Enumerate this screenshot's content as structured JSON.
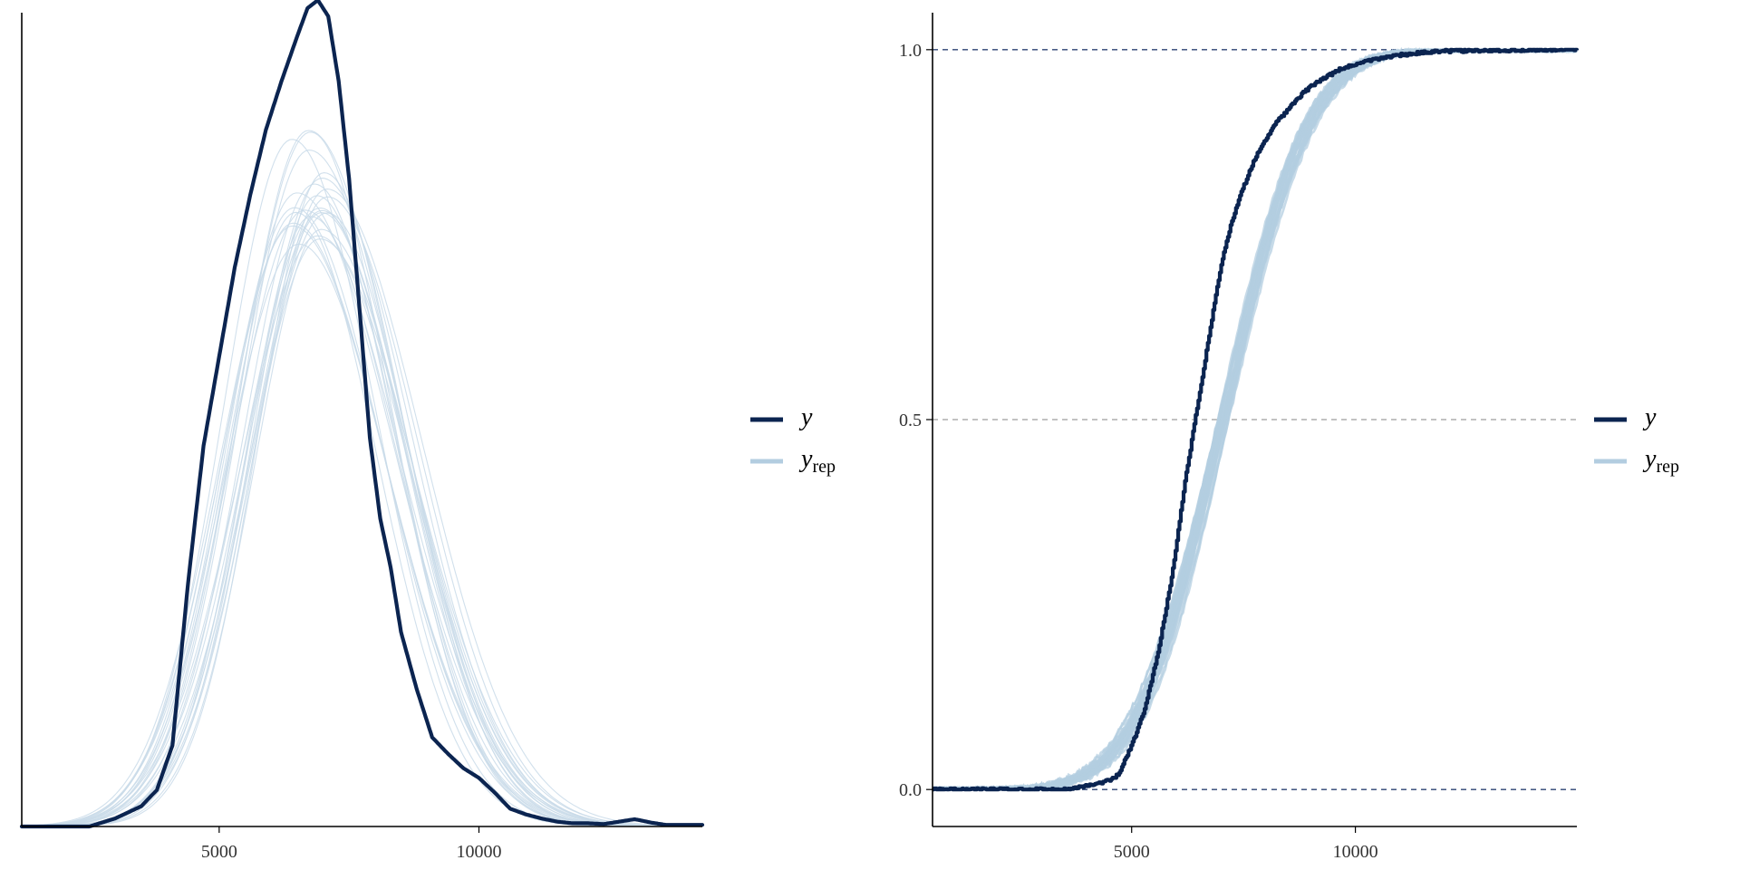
{
  "colors": {
    "y": "#0b2450",
    "yrep": "#b3cde0",
    "yrep_thin": "#c9dbe9",
    "grid_dark": "#2d4373",
    "grid_mid": "#9e9e9e"
  },
  "chart_data": [
    {
      "type": "line",
      "kind": "density-overlay",
      "title": "",
      "xlabel": "",
      "ylabel": "",
      "xlim": [
        1200,
        14300
      ],
      "ylim": [
        0,
        1.0
      ],
      "x_ticks": [
        5000,
        10000
      ],
      "x_tick_labels": [
        "5000",
        "10000"
      ],
      "y_ticks_shown": false,
      "legend": {
        "placement": "right",
        "entries": [
          {
            "label": "y",
            "sub": ""
          },
          {
            "label": "y",
            "sub": "rep"
          }
        ]
      },
      "series": [
        {
          "name": "y",
          "x": [
            1200,
            2500,
            3000,
            3500,
            3800,
            4100,
            4400,
            4700,
            5000,
            5300,
            5600,
            5900,
            6200,
            6500,
            6700,
            6900,
            7100,
            7300,
            7500,
            7700,
            7900,
            8100,
            8300,
            8500,
            8800,
            9100,
            9400,
            9700,
            10000,
            10300,
            10600,
            10900,
            11200,
            11500,
            11800,
            12100,
            12400,
            12700,
            13000,
            13300,
            13600,
            14000,
            14300
          ],
          "y": [
            0.0,
            0.0,
            0.01,
            0.025,
            0.045,
            0.1,
            0.3,
            0.47,
            0.58,
            0.69,
            0.78,
            0.86,
            0.92,
            0.975,
            1.01,
            1.02,
            1.0,
            0.92,
            0.8,
            0.64,
            0.48,
            0.38,
            0.32,
            0.24,
            0.17,
            0.11,
            0.09,
            0.072,
            0.06,
            0.042,
            0.022,
            0.015,
            0.01,
            0.006,
            0.004,
            0.004,
            0.003,
            0.006,
            0.009,
            0.005,
            0.002,
            0.002,
            0.002
          ]
        }
      ],
      "replicate_draws": 25,
      "replicate_mode": {
        "x": 6900,
        "density_range": [
          0.71,
          0.86
        ]
      }
    },
    {
      "type": "line",
      "kind": "ecdf-overlay",
      "title": "",
      "xlabel": "",
      "ylabel": "",
      "xlim": [
        550,
        14950
      ],
      "ylim": [
        -0.05,
        1.05
      ],
      "x_ticks": [
        5000,
        10000
      ],
      "x_tick_labels": [
        "5000",
        "10000"
      ],
      "y_ticks": [
        0.0,
        0.5,
        1.0
      ],
      "y_tick_labels": [
        "0.0",
        "0.5",
        "1.0"
      ],
      "reference_lines": [
        0.0,
        0.5,
        1.0
      ],
      "legend": {
        "placement": "right",
        "entries": [
          {
            "label": "y",
            "sub": ""
          },
          {
            "label": "y",
            "sub": "rep"
          }
        ]
      },
      "series": [
        {
          "name": "y",
          "x": [
            550,
            2000,
            3500,
            4000,
            4500,
            4700,
            5000,
            5300,
            5600,
            5900,
            6200,
            6500,
            6800,
            7000,
            7200,
            7400,
            7600,
            7800,
            8000,
            8200,
            8500,
            8800,
            9100,
            9400,
            9700,
            10000,
            10500,
            11000,
            11500,
            12000,
            13000,
            14000,
            14950
          ],
          "y": [
            0.0,
            0.0,
            0.0,
            0.005,
            0.012,
            0.02,
            0.06,
            0.11,
            0.19,
            0.29,
            0.42,
            0.53,
            0.64,
            0.71,
            0.76,
            0.8,
            0.83,
            0.86,
            0.88,
            0.9,
            0.92,
            0.94,
            0.955,
            0.965,
            0.975,
            0.98,
            0.988,
            0.993,
            0.996,
            0.998,
            0.999,
            1.0,
            1.0
          ]
        }
      ],
      "replicate_draws": 25
    }
  ]
}
